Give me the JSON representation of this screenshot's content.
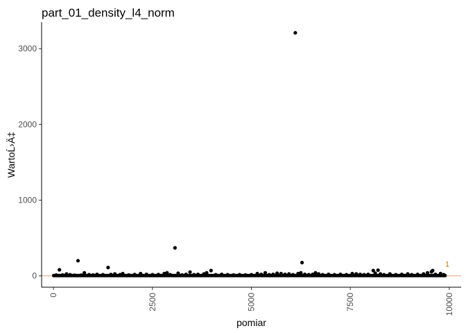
{
  "chart_data": {
    "type": "scatter",
    "title": "part_01_density_l4_norm",
    "xlabel": "pomiar",
    "ylabel": "WartoĹ›Ä‡",
    "xlim": [
      -300,
      10300
    ],
    "ylim": [
      -150,
      3350
    ],
    "x_ticks": [
      0,
      2500,
      5000,
      7500,
      10000
    ],
    "x_tick_labels": [
      "0",
      "2500",
      "5000",
      "7500",
      "10000"
    ],
    "y_ticks": [
      0,
      1000,
      2000,
      3000
    ],
    "y_tick_labels": [
      "0",
      "1000",
      "2000",
      "3000"
    ],
    "grid": false,
    "reference_line": {
      "y": 0,
      "color": "#e8a07a"
    },
    "point_color": "#000000",
    "baseline_band": {
      "x_start": 0,
      "x_end": 9900,
      "y_low": 0,
      "y_high": 8
    },
    "points": [
      {
        "x": 70,
        "y": 10
      },
      {
        "x": 150,
        "y": 80
      },
      {
        "x": 230,
        "y": 12
      },
      {
        "x": 330,
        "y": 25
      },
      {
        "x": 420,
        "y": 15
      },
      {
        "x": 530,
        "y": 8
      },
      {
        "x": 620,
        "y": 200
      },
      {
        "x": 700,
        "y": 10
      },
      {
        "x": 780,
        "y": 40
      },
      {
        "x": 900,
        "y": 15
      },
      {
        "x": 1000,
        "y": 12
      },
      {
        "x": 1100,
        "y": 20
      },
      {
        "x": 1250,
        "y": 15
      },
      {
        "x": 1380,
        "y": 110
      },
      {
        "x": 1450,
        "y": 18
      },
      {
        "x": 1550,
        "y": 25
      },
      {
        "x": 1680,
        "y": 15
      },
      {
        "x": 1750,
        "y": 30
      },
      {
        "x": 1900,
        "y": 12
      },
      {
        "x": 2050,
        "y": 18
      },
      {
        "x": 2200,
        "y": 30
      },
      {
        "x": 2350,
        "y": 20
      },
      {
        "x": 2500,
        "y": 15
      },
      {
        "x": 2650,
        "y": 18
      },
      {
        "x": 2800,
        "y": 30
      },
      {
        "x": 2870,
        "y": 40
      },
      {
        "x": 2950,
        "y": 15
      },
      {
        "x": 3070,
        "y": 370
      },
      {
        "x": 3150,
        "y": 35
      },
      {
        "x": 3250,
        "y": 12
      },
      {
        "x": 3350,
        "y": 20
      },
      {
        "x": 3450,
        "y": 50
      },
      {
        "x": 3550,
        "y": 15
      },
      {
        "x": 3650,
        "y": 20
      },
      {
        "x": 3800,
        "y": 25
      },
      {
        "x": 3870,
        "y": 40
      },
      {
        "x": 3980,
        "y": 70
      },
      {
        "x": 4100,
        "y": 15
      },
      {
        "x": 4250,
        "y": 20
      },
      {
        "x": 4400,
        "y": 15
      },
      {
        "x": 4550,
        "y": 12
      },
      {
        "x": 4700,
        "y": 15
      },
      {
        "x": 4850,
        "y": 12
      },
      {
        "x": 5000,
        "y": 15
      },
      {
        "x": 5150,
        "y": 30
      },
      {
        "x": 5250,
        "y": 20
      },
      {
        "x": 5350,
        "y": 40
      },
      {
        "x": 5450,
        "y": 15
      },
      {
        "x": 5550,
        "y": 20
      },
      {
        "x": 5650,
        "y": 35
      },
      {
        "x": 5750,
        "y": 30
      },
      {
        "x": 5850,
        "y": 20
      },
      {
        "x": 5950,
        "y": 25
      },
      {
        "x": 6050,
        "y": 15
      },
      {
        "x": 6110,
        "y": 3210
      },
      {
        "x": 6180,
        "y": 30
      },
      {
        "x": 6250,
        "y": 40
      },
      {
        "x": 6280,
        "y": 175
      },
      {
        "x": 6350,
        "y": 20
      },
      {
        "x": 6450,
        "y": 15
      },
      {
        "x": 6550,
        "y": 20
      },
      {
        "x": 6620,
        "y": 40
      },
      {
        "x": 6700,
        "y": 25
      },
      {
        "x": 6800,
        "y": 15
      },
      {
        "x": 6950,
        "y": 20
      },
      {
        "x": 7100,
        "y": 15
      },
      {
        "x": 7250,
        "y": 20
      },
      {
        "x": 7400,
        "y": 15
      },
      {
        "x": 7550,
        "y": 30
      },
      {
        "x": 7650,
        "y": 25
      },
      {
        "x": 7750,
        "y": 20
      },
      {
        "x": 7850,
        "y": 15
      },
      {
        "x": 7950,
        "y": 20
      },
      {
        "x": 8080,
        "y": 70
      },
      {
        "x": 8130,
        "y": 35
      },
      {
        "x": 8200,
        "y": 75
      },
      {
        "x": 8260,
        "y": 25
      },
      {
        "x": 8350,
        "y": 15
      },
      {
        "x": 8500,
        "y": 25
      },
      {
        "x": 8650,
        "y": 15
      },
      {
        "x": 8800,
        "y": 20
      },
      {
        "x": 8950,
        "y": 25
      },
      {
        "x": 9050,
        "y": 15
      },
      {
        "x": 9200,
        "y": 20
      },
      {
        "x": 9350,
        "y": 25
      },
      {
        "x": 9450,
        "y": 40
      },
      {
        "x": 9550,
        "y": 55
      },
      {
        "x": 9580,
        "y": 70
      },
      {
        "x": 9650,
        "y": 20
      },
      {
        "x": 9780,
        "y": 30
      },
      {
        "x": 9860,
        "y": 15
      }
    ],
    "annotations": [
      {
        "text": "1",
        "x": 9950,
        "y": 120
      }
    ]
  }
}
